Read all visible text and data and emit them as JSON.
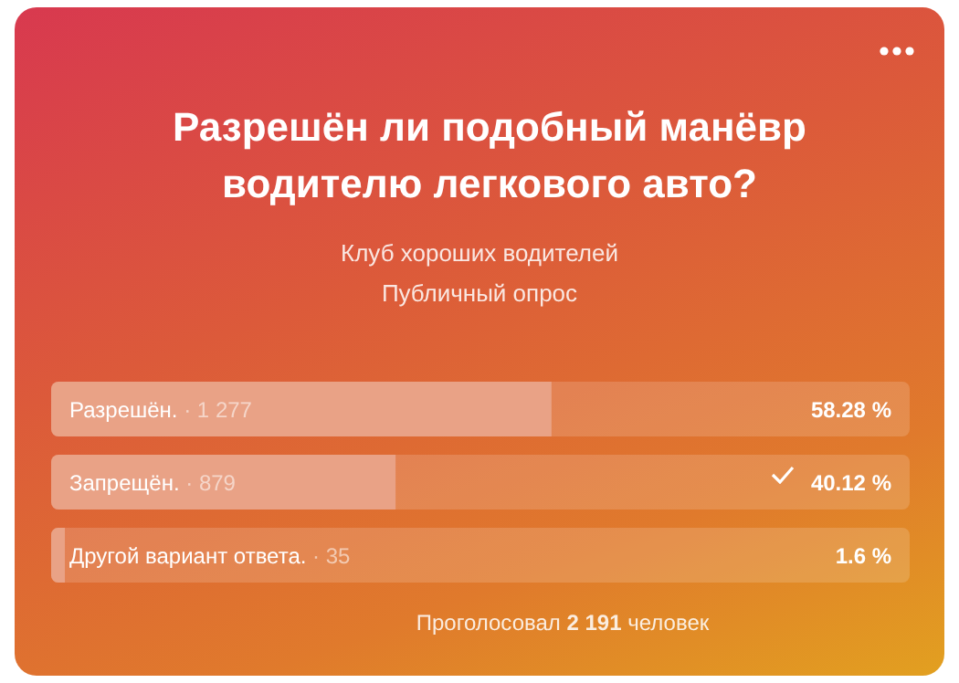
{
  "chart_data": {
    "type": "bar",
    "orientation": "horizontal",
    "title": "Разрешён ли подобный манёвр водителю легкового авто?",
    "subtitle": "Клуб хороших водителей",
    "annotations": [
      "Публичный опрос",
      "Проголосовал 2 191 человек"
    ],
    "categories": [
      "Разрешён. · 1 277",
      "Запрещён. · 879",
      "Другой вариант ответа. · 35"
    ],
    "values": [
      58.28,
      40.12,
      1.6
    ],
    "value_labels": [
      "58.28 %",
      "40.12 %",
      "1.6 %"
    ],
    "color": "#e9a286",
    "xlim": [
      0,
      100
    ]
  }
}
